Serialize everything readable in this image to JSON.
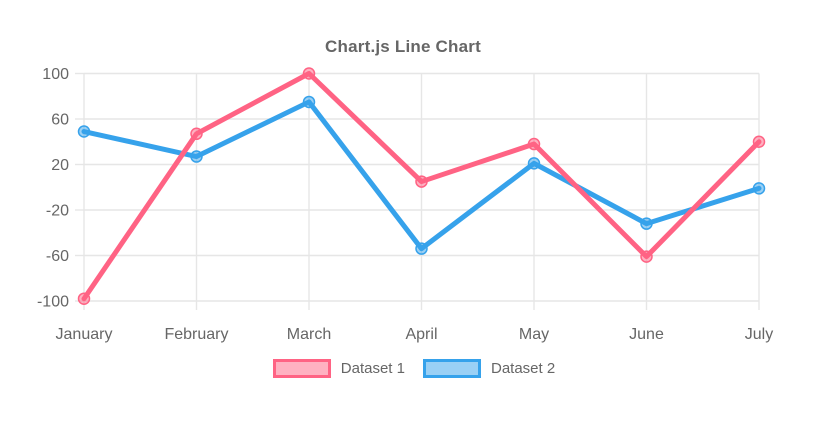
{
  "chart_data": {
    "type": "line",
    "title": "Chart.js Line Chart",
    "categories": [
      "January",
      "February",
      "March",
      "April",
      "May",
      "June",
      "July"
    ],
    "series": [
      {
        "name": "Dataset 1",
        "border_color": "#FF6384",
        "fill_color": "rgba(255,99,132,0.5)",
        "values": [
          -98,
          47,
          100,
          5,
          38,
          -61,
          40
        ]
      },
      {
        "name": "Dataset 2",
        "border_color": "#36A2EB",
        "fill_color": "rgba(54,162,235,0.5)",
        "values": [
          49,
          27,
          75,
          -54,
          21,
          -32,
          -1
        ]
      }
    ],
    "xlabel": "",
    "ylabel": "",
    "ylim": [
      -100,
      100
    ],
    "yticks": [
      100,
      60,
      20,
      -20,
      -60,
      -100
    ],
    "grid": true,
    "legend_position": "bottom",
    "text_color": "#666666",
    "grid_color": "#E6E6E6"
  }
}
